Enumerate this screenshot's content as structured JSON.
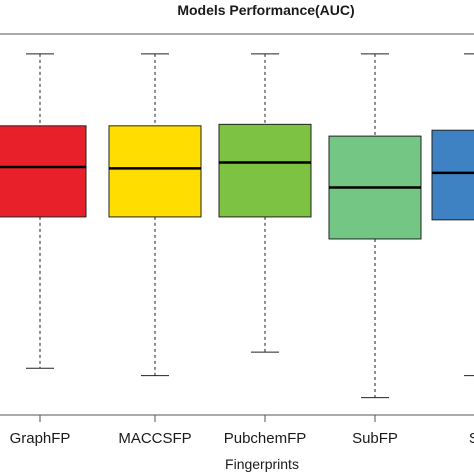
{
  "chart_data": {
    "type": "boxplot",
    "title": "Models Performance(AUC)",
    "xlabel": "Fingerprints",
    "ylabel": "",
    "grid": false,
    "legend": "none",
    "categories": [
      "GraphFP",
      "MACCSFP",
      "PubchemFP",
      "SubFP",
      "Su"
    ],
    "boxes": [
      {
        "label": "GraphFP",
        "whisker_low": 0.705,
        "q1": 0.808,
        "median": 0.842,
        "q3": 0.87,
        "whisker_high": 0.919,
        "color": "#e8202a"
      },
      {
        "label": "MACCSFP",
        "whisker_low": 0.7,
        "q1": 0.808,
        "median": 0.841,
        "q3": 0.87,
        "whisker_high": 0.919,
        "color": "#ffdd00"
      },
      {
        "label": "PubchemFP",
        "whisker_low": 0.716,
        "q1": 0.808,
        "median": 0.845,
        "q3": 0.871,
        "whisker_high": 0.919,
        "color": "#7dc242"
      },
      {
        "label": "SubFP",
        "whisker_low": 0.685,
        "q1": 0.793,
        "median": 0.828,
        "q3": 0.863,
        "whisker_high": 0.919,
        "color": "#74c685"
      },
      {
        "label": "Su",
        "whisker_low": 0.7,
        "q1": 0.806,
        "median": 0.838,
        "q3": 0.867,
        "whisker_high": 0.919,
        "color": "#3f82c4"
      }
    ]
  }
}
